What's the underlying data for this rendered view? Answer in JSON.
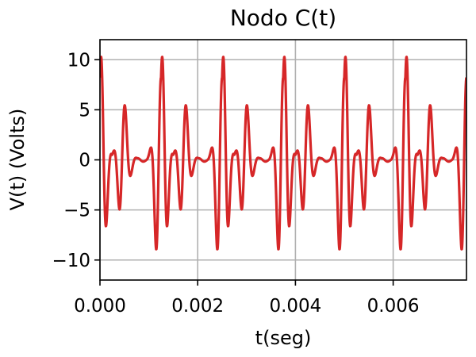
{
  "chart_data": {
    "type": "line",
    "title": "Nodo C(t)",
    "xlabel": "t(seg)",
    "ylabel": "V(t) (Volts)",
    "xlim": [
      0,
      0.0075
    ],
    "ylim": [
      -12,
      12
    ],
    "grid": true,
    "legend": "none",
    "line_color": "#d62728",
    "x_ticks": [
      {
        "value": 0.0,
        "label": "0.000"
      },
      {
        "value": 0.002,
        "label": "0.002"
      },
      {
        "value": 0.004,
        "label": "0.004"
      },
      {
        "value": 0.006,
        "label": "0.006"
      }
    ],
    "y_ticks": [
      {
        "value": 10,
        "label": "10"
      },
      {
        "value": 5,
        "label": "5"
      },
      {
        "value": 0,
        "label": "0"
      },
      {
        "value": -5,
        "label": "−5"
      },
      {
        "value": -10,
        "label": "−10"
      }
    ],
    "series": [
      {
        "description_shape": "burst-modulated oscillation, period 0.00125 s",
        "burst_period": 0.00125,
        "x_start": 0,
        "x_end": 0.0075,
        "x_step": 2e-05,
        "amplitude": 12,
        "carrier_frequency": 4000
      }
    ]
  }
}
